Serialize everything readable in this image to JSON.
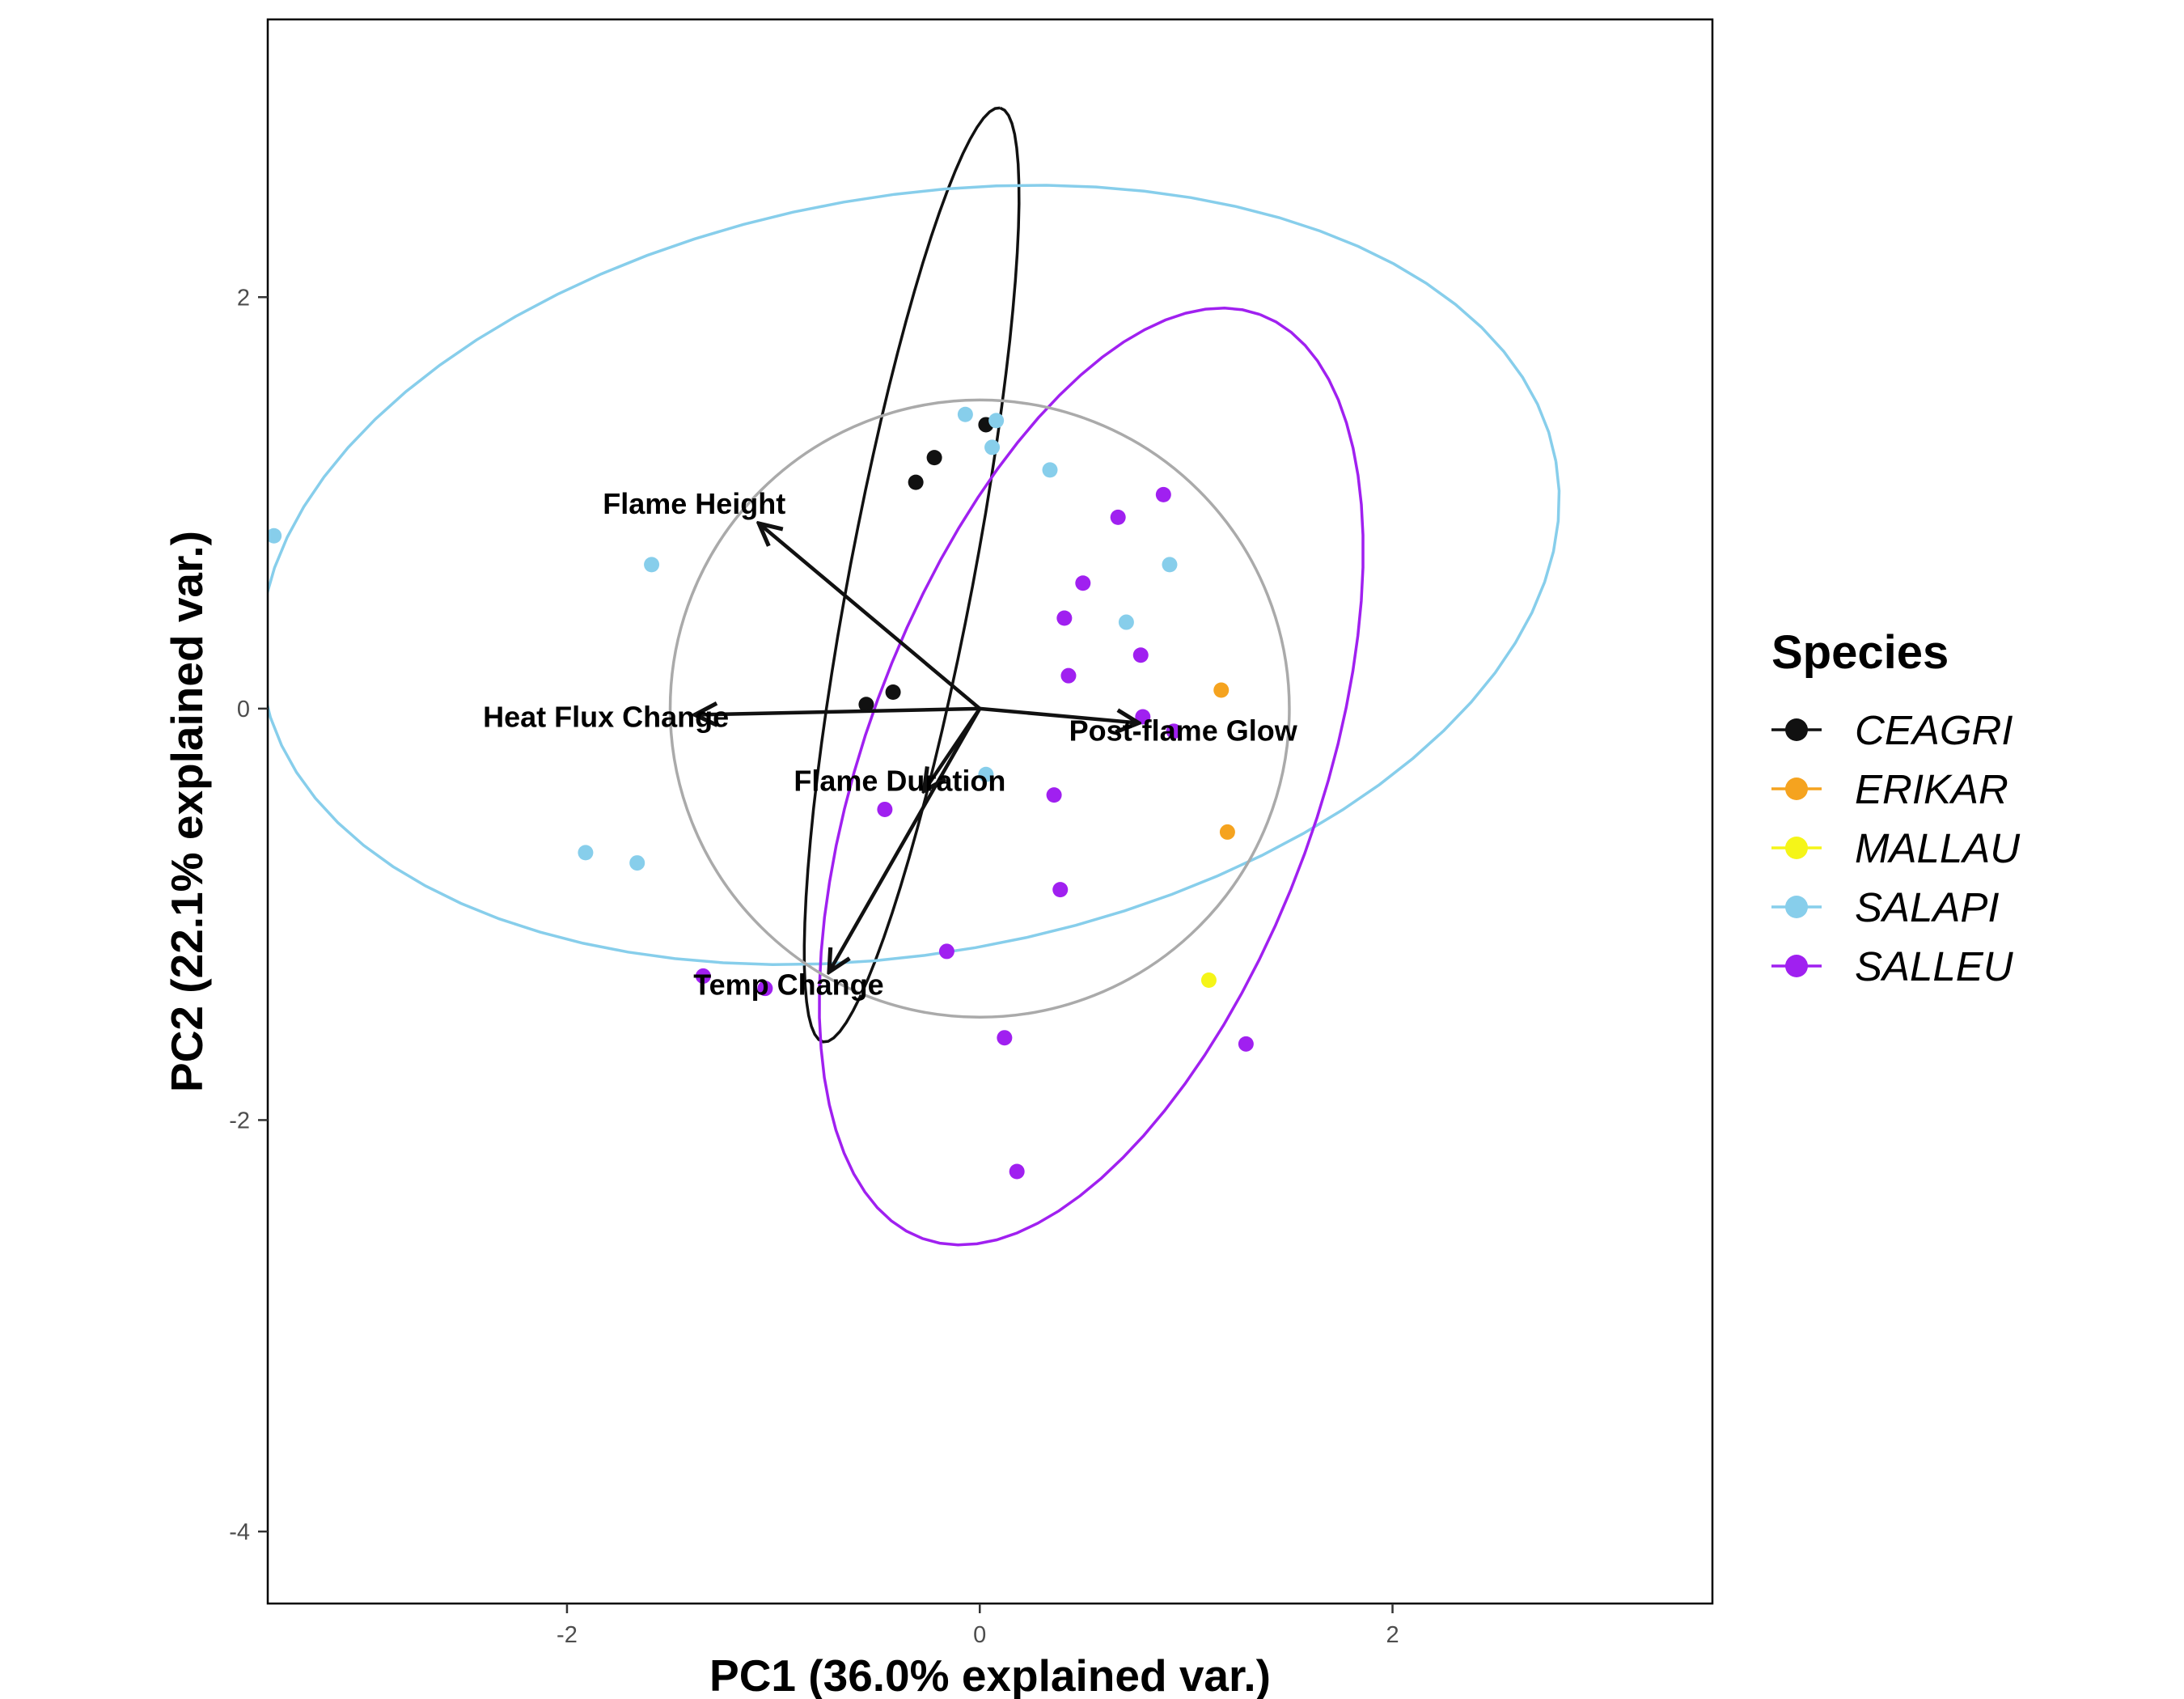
{
  "chart_data": {
    "type": "scatter",
    "title": "",
    "xlabel": "PC1 (36.0% explained var.)",
    "ylabel": "PC2 (22.1% explained var.)",
    "xlim": [
      -3.45,
      3.55
    ],
    "ylim": [
      -4.35,
      3.35
    ],
    "xticks": [
      -2,
      0,
      2
    ],
    "yticks": [
      -4,
      -2,
      0,
      2
    ],
    "grid": false,
    "legend": {
      "title": "Species",
      "position": "right",
      "entries": [
        "CEAGRI",
        "ERIKAR",
        "MALLAU",
        "SALAPI",
        "SALLEU"
      ]
    },
    "series": [
      {
        "name": "CEAGRI",
        "color": "#111111",
        "points": [
          [
            0.03,
            1.38
          ],
          [
            -0.22,
            1.22
          ],
          [
            -0.31,
            1.1
          ],
          [
            -0.42,
            0.08
          ],
          [
            -0.55,
            0.02
          ]
        ],
        "ellipse": {
          "cx": -0.33,
          "cy": 0.65,
          "rx": 2.31,
          "ry": 0.3,
          "angle": 79.3
        }
      },
      {
        "name": "ERIKAR",
        "color": "#f5a31f",
        "points": [
          [
            1.17,
            0.09
          ],
          [
            1.2,
            -0.6
          ]
        ],
        "ellipse": null
      },
      {
        "name": "MALLAU",
        "color": "#f5f518",
        "points": [
          [
            1.11,
            -1.32
          ]
        ],
        "ellipse": null
      },
      {
        "name": "SALAPI",
        "color": "#87ceeb",
        "points": [
          [
            -3.42,
            0.84
          ],
          [
            -1.59,
            0.7
          ],
          [
            -1.91,
            -0.7
          ],
          [
            -1.66,
            -0.75
          ],
          [
            -0.07,
            1.43
          ],
          [
            0.08,
            1.4
          ],
          [
            0.06,
            1.27
          ],
          [
            0.34,
            1.16
          ],
          [
            0.92,
            0.7
          ],
          [
            0.71,
            0.42
          ],
          [
            0.03,
            -0.32
          ]
        ],
        "ellipse": {
          "cx": -0.34,
          "cy": 0.65,
          "rx": 3.18,
          "ry": 1.84,
          "angle": 10
        }
      },
      {
        "name": "SALLEU",
        "color": "#a020f0",
        "points": [
          [
            0.89,
            1.04
          ],
          [
            0.67,
            0.93
          ],
          [
            0.5,
            0.61
          ],
          [
            0.41,
            0.44
          ],
          [
            0.78,
            0.26
          ],
          [
            0.43,
            0.16
          ],
          [
            0.79,
            -0.04
          ],
          [
            0.94,
            -0.11
          ],
          [
            -0.46,
            -0.49
          ],
          [
            0.36,
            -0.42
          ],
          [
            0.39,
            -0.88
          ],
          [
            -0.16,
            -1.18
          ],
          [
            -1.34,
            -1.3
          ],
          [
            -1.04,
            -1.36
          ],
          [
            0.12,
            -1.6
          ],
          [
            1.29,
            -1.63
          ],
          [
            0.18,
            -2.25
          ]
        ],
        "ellipse": {
          "cx": 0.54,
          "cy": -0.33,
          "rx": 2.39,
          "ry": 1.1,
          "angle": 70
        }
      }
    ],
    "correlation_circle": {
      "cx": 0,
      "cy": 0,
      "r": 1.5,
      "color": "#aaaaaa"
    },
    "loadings": [
      {
        "label": "Flame Height",
        "x": -1.07,
        "y": 0.9
      },
      {
        "label": "Heat Flux Change",
        "x": -1.38,
        "y": -0.03
      },
      {
        "label": "Post-flame Glow",
        "x": 0.77,
        "y": -0.07
      },
      {
        "label": "Flame Duration",
        "x": -0.27,
        "y": -0.4
      },
      {
        "label": "Temp Change",
        "x": -0.73,
        "y": -1.28
      }
    ]
  }
}
